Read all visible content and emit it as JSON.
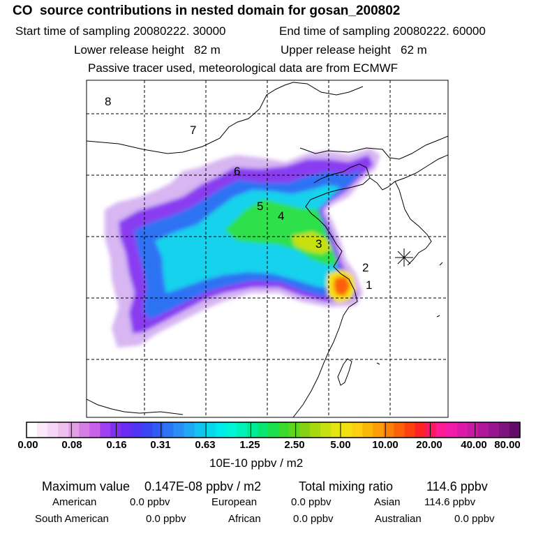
{
  "header": {
    "title": "CO  source contributions in nested domain for gosan_200802",
    "start_time": "Start time of sampling 20080222. 30000",
    "end_time": "End time of sampling 20080222. 60000",
    "lower_height": "Lower release height   82 m",
    "upper_height": "Upper release height   62 m",
    "tracer_note": "Passive tracer used, meteorological data are from ECMWF"
  },
  "map": {
    "region_labels": [
      "8",
      "7",
      "6",
      "5",
      "4",
      "3",
      "2",
      "1"
    ],
    "receptor_marker": "gosan-receptor"
  },
  "colorbar": {
    "tick_labels": [
      "0.00",
      "0.08",
      "0.16",
      "0.31",
      "0.63",
      "1.25",
      "2.50",
      "5.00",
      "10.00",
      "20.00",
      "40.00",
      "80.00"
    ],
    "units": "10E-10 ppbv / m2",
    "colors": [
      "#ffffff",
      "#fbe8fb",
      "#f6d6f6",
      "#efbff0",
      "#e39ee8",
      "#d57fe6",
      "#c860ec",
      "#a040f2",
      "#8230f0",
      "#6a2cf2",
      "#4e36f4",
      "#3a46f4",
      "#2e5cf4",
      "#2b76f6",
      "#2a90f6",
      "#20a8f4",
      "#12c2f0",
      "#08d8ec",
      "#00ecea",
      "#00f4d8",
      "#00f2b8",
      "#00ec94",
      "#08e670",
      "#1ee04c",
      "#3ada2e",
      "#5ed61e",
      "#86d214",
      "#a8d810",
      "#c8e010",
      "#e4e410",
      "#f4e010",
      "#fcd010",
      "#fcb808",
      "#fc9c08",
      "#fc8008",
      "#fc6008",
      "#fc4010",
      "#fc2424",
      "#fc1860",
      "#fc1c96",
      "#f01caa",
      "#dc1ca8",
      "#c81aa2",
      "#b0189c",
      "#981690",
      "#801280",
      "#640c6a"
    ]
  },
  "stats": {
    "maximum_label": "Maximum value",
    "maximum_value": "0.147E-08 ppbv / m2",
    "total_label": "Total mixing ratio",
    "total_value": "114.6 ppbv",
    "american_label": "American",
    "american_value": "0.0 ppbv",
    "european_label": "European",
    "european_value": "0.0 ppbv",
    "asian_label": "Asian",
    "asian_value": "114.6 ppbv",
    "south_american_label": "South American",
    "south_american_value": "0.0 ppbv",
    "african_label": "African",
    "african_value": "0.0 ppbv",
    "australian_label": "Australian",
    "australian_value": "0.0 ppbv"
  }
}
